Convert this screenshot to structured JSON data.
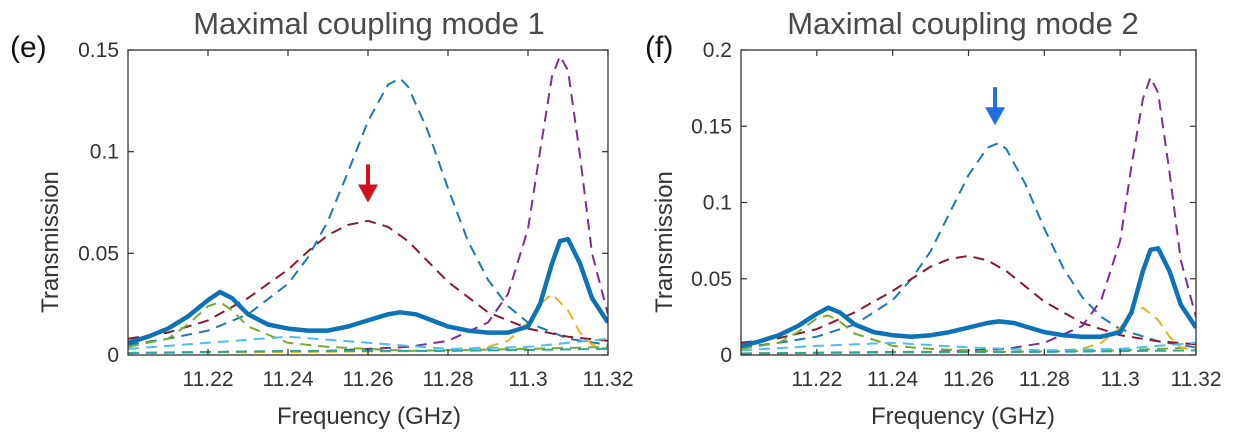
{
  "panels": [
    {
      "panel_label": "(e)",
      "arrow_color": "#d0101b",
      "arrow_at": {
        "x": 11.26,
        "y": 0.076
      }
    },
    {
      "panel_label": "(f)",
      "arrow_color": "#1f6fe0",
      "arrow_at": {
        "x": 11.267,
        "y": 0.152
      }
    }
  ],
  "chart_data": [
    {
      "type": "line",
      "title": "Maximal coupling mode 1",
      "xlabel": "Frequency (GHz)",
      "ylabel": "Transmission",
      "xlim": [
        11.2,
        11.32
      ],
      "ylim": [
        0,
        0.15
      ],
      "xticks": [
        "11.22",
        "11.24",
        "11.26",
        "11.28",
        "11.3",
        "11.32"
      ],
      "xtick_values": [
        11.22,
        11.24,
        11.26,
        11.28,
        11.3,
        11.32
      ],
      "yticks": [
        "0",
        "0.05",
        "0.1",
        "0.15"
      ],
      "ytick_values": [
        0,
        0.05,
        0.1,
        0.15
      ],
      "grid": false,
      "series": [
        {
          "style": "solid",
          "color": "#0d72b6",
          "x": [
            11.2,
            11.205,
            11.21,
            11.215,
            11.22,
            11.223,
            11.226,
            11.23,
            11.235,
            11.24,
            11.245,
            11.25,
            11.255,
            11.26,
            11.265,
            11.268,
            11.272,
            11.276,
            11.28,
            11.285,
            11.29,
            11.295,
            11.3,
            11.303,
            11.306,
            11.308,
            11.31,
            11.313,
            11.316,
            11.32
          ],
          "y": [
            0.006,
            0.009,
            0.013,
            0.019,
            0.027,
            0.031,
            0.028,
            0.02,
            0.015,
            0.013,
            0.012,
            0.012,
            0.014,
            0.017,
            0.02,
            0.021,
            0.02,
            0.017,
            0.014,
            0.012,
            0.011,
            0.011,
            0.014,
            0.025,
            0.045,
            0.056,
            0.057,
            0.045,
            0.028,
            0.016
          ]
        },
        {
          "style": "dashed",
          "color": "#1f77b4",
          "x": [
            11.2,
            11.21,
            11.22,
            11.23,
            11.24,
            11.245,
            11.25,
            11.255,
            11.26,
            11.265,
            11.268,
            11.27,
            11.275,
            11.28,
            11.285,
            11.29,
            11.295,
            11.3,
            11.31,
            11.32
          ],
          "y": [
            0.005,
            0.008,
            0.012,
            0.02,
            0.035,
            0.048,
            0.066,
            0.09,
            0.115,
            0.133,
            0.136,
            0.132,
            0.11,
            0.082,
            0.056,
            0.037,
            0.024,
            0.016,
            0.008,
            0.005
          ]
        },
        {
          "style": "dashed",
          "color": "#8b1a2e",
          "x": [
            11.2,
            11.21,
            11.22,
            11.23,
            11.24,
            11.245,
            11.25,
            11.255,
            11.26,
            11.265,
            11.27,
            11.275,
            11.28,
            11.29,
            11.3,
            11.31,
            11.32
          ],
          "y": [
            0.008,
            0.011,
            0.017,
            0.028,
            0.042,
            0.051,
            0.059,
            0.064,
            0.066,
            0.063,
            0.056,
            0.046,
            0.036,
            0.021,
            0.013,
            0.009,
            0.007
          ]
        },
        {
          "style": "dashed",
          "color": "#7e2f8e",
          "x": [
            11.2,
            11.25,
            11.27,
            11.28,
            11.29,
            11.295,
            11.3,
            11.303,
            11.306,
            11.308,
            11.31,
            11.313,
            11.316,
            11.32
          ],
          "y": [
            0.001,
            0.002,
            0.004,
            0.007,
            0.016,
            0.03,
            0.062,
            0.1,
            0.137,
            0.147,
            0.14,
            0.098,
            0.05,
            0.02
          ]
        },
        {
          "style": "dashed",
          "color": "#77ac30",
          "x": [
            11.2,
            11.21,
            11.215,
            11.22,
            11.223,
            11.226,
            11.23,
            11.24,
            11.25,
            11.27,
            11.3,
            11.32
          ],
          "y": [
            0.004,
            0.008,
            0.015,
            0.024,
            0.026,
            0.022,
            0.014,
            0.006,
            0.004,
            0.002,
            0.003,
            0.004
          ]
        },
        {
          "style": "dashed",
          "color": "#edb120",
          "x": [
            11.2,
            11.28,
            11.29,
            11.295,
            11.3,
            11.303,
            11.306,
            11.31,
            11.313,
            11.316,
            11.32
          ],
          "y": [
            0.001,
            0.002,
            0.004,
            0.007,
            0.016,
            0.025,
            0.03,
            0.022,
            0.011,
            0.005,
            0.003
          ]
        },
        {
          "style": "dashed",
          "color": "#4dbeee",
          "x": [
            11.2,
            11.22,
            11.24,
            11.26,
            11.28,
            11.3,
            11.32
          ],
          "y": [
            0.003,
            0.006,
            0.009,
            0.006,
            0.003,
            0.004,
            0.008
          ]
        },
        {
          "style": "dashed",
          "color": "#2ca7a0",
          "x": [
            11.2,
            11.24,
            11.28,
            11.32
          ],
          "y": [
            0.001,
            0.002,
            0.002,
            0.003
          ]
        }
      ]
    },
    {
      "type": "line",
      "title": "Maximal coupling mode 2",
      "xlabel": "Frequency (GHz)",
      "ylabel": "Transmission",
      "xlim": [
        11.2,
        11.32
      ],
      "ylim": [
        0,
        0.2
      ],
      "xticks": [
        "11.22",
        "11.24",
        "11.26",
        "11.28",
        "11.3",
        "11.32"
      ],
      "xtick_values": [
        11.22,
        11.24,
        11.26,
        11.28,
        11.3,
        11.32
      ],
      "yticks": [
        "0",
        "0.05",
        "0.1",
        "0.15",
        "0.2"
      ],
      "ytick_values": [
        0,
        0.05,
        0.1,
        0.15,
        0.2
      ],
      "grid": false,
      "series": [
        {
          "style": "solid",
          "color": "#0d72b6",
          "x": [
            11.2,
            11.205,
            11.21,
            11.215,
            11.22,
            11.223,
            11.226,
            11.23,
            11.235,
            11.24,
            11.245,
            11.25,
            11.255,
            11.26,
            11.265,
            11.268,
            11.272,
            11.276,
            11.28,
            11.285,
            11.29,
            11.295,
            11.3,
            11.303,
            11.306,
            11.308,
            11.31,
            11.313,
            11.316,
            11.32
          ],
          "y": [
            0.006,
            0.009,
            0.013,
            0.019,
            0.027,
            0.031,
            0.028,
            0.02,
            0.015,
            0.013,
            0.012,
            0.013,
            0.015,
            0.018,
            0.021,
            0.022,
            0.021,
            0.018,
            0.015,
            0.013,
            0.012,
            0.012,
            0.015,
            0.028,
            0.055,
            0.069,
            0.07,
            0.055,
            0.033,
            0.018
          ]
        },
        {
          "style": "dashed",
          "color": "#1f77b4",
          "x": [
            11.2,
            11.21,
            11.22,
            11.23,
            11.24,
            11.245,
            11.25,
            11.255,
            11.26,
            11.265,
            11.268,
            11.27,
            11.275,
            11.28,
            11.285,
            11.29,
            11.295,
            11.3,
            11.31,
            11.32
          ],
          "y": [
            0.005,
            0.008,
            0.012,
            0.02,
            0.036,
            0.05,
            0.068,
            0.093,
            0.118,
            0.136,
            0.139,
            0.135,
            0.112,
            0.083,
            0.057,
            0.038,
            0.025,
            0.017,
            0.009,
            0.005
          ]
        },
        {
          "style": "dashed",
          "color": "#8b1a2e",
          "x": [
            11.2,
            11.21,
            11.22,
            11.23,
            11.24,
            11.245,
            11.25,
            11.255,
            11.26,
            11.265,
            11.27,
            11.275,
            11.28,
            11.29,
            11.3,
            11.31,
            11.32
          ],
          "y": [
            0.008,
            0.011,
            0.017,
            0.028,
            0.042,
            0.05,
            0.058,
            0.063,
            0.065,
            0.062,
            0.055,
            0.045,
            0.035,
            0.021,
            0.013,
            0.009,
            0.007
          ]
        },
        {
          "style": "dashed",
          "color": "#7e2f8e",
          "x": [
            11.2,
            11.25,
            11.27,
            11.28,
            11.29,
            11.295,
            11.3,
            11.303,
            11.306,
            11.308,
            11.31,
            11.313,
            11.316,
            11.32
          ],
          "y": [
            0.001,
            0.002,
            0.004,
            0.008,
            0.019,
            0.036,
            0.075,
            0.124,
            0.168,
            0.182,
            0.172,
            0.12,
            0.062,
            0.025
          ]
        },
        {
          "style": "dashed",
          "color": "#77ac30",
          "x": [
            11.2,
            11.21,
            11.215,
            11.22,
            11.223,
            11.226,
            11.23,
            11.24,
            11.25,
            11.27,
            11.3,
            11.32
          ],
          "y": [
            0.004,
            0.008,
            0.015,
            0.024,
            0.026,
            0.022,
            0.014,
            0.006,
            0.004,
            0.002,
            0.003,
            0.005
          ]
        },
        {
          "style": "dashed",
          "color": "#edb120",
          "x": [
            11.2,
            11.28,
            11.29,
            11.295,
            11.3,
            11.303,
            11.306,
            11.31,
            11.313,
            11.316,
            11.32
          ],
          "y": [
            0.001,
            0.002,
            0.004,
            0.008,
            0.018,
            0.027,
            0.031,
            0.023,
            0.012,
            0.005,
            0.003
          ]
        },
        {
          "style": "dashed",
          "color": "#4dbeee",
          "x": [
            11.2,
            11.22,
            11.24,
            11.26,
            11.28,
            11.3,
            11.32
          ],
          "y": [
            0.003,
            0.006,
            0.008,
            0.005,
            0.003,
            0.004,
            0.008
          ]
        },
        {
          "style": "dashed",
          "color": "#2ca7a0",
          "x": [
            11.2,
            11.24,
            11.28,
            11.32
          ],
          "y": [
            0.001,
            0.002,
            0.002,
            0.003
          ]
        }
      ]
    }
  ]
}
